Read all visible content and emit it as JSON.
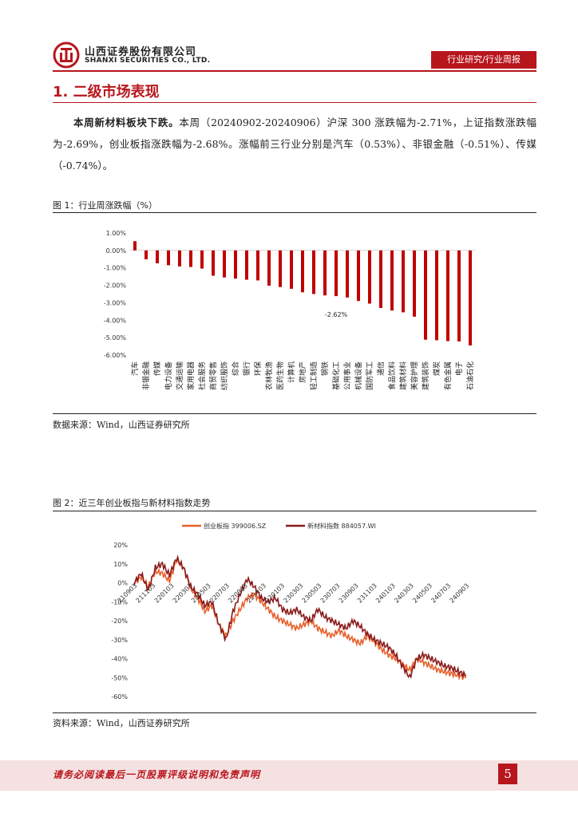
{
  "header": {
    "company_cn": "山西证券股份有限公司",
    "company_en": "SHANXI SECURITIES CO., LTD.",
    "report_type": "行业研究/行业周报"
  },
  "section": {
    "title": "1. 二级市场表现"
  },
  "paragraph": {
    "lead": "本周新材料板块下跌。",
    "body": "本周（20240902-20240906）沪深 300 涨跌幅为-2.71%，上证指数涨跌幅为-2.69%，创业板指涨跌幅为-2.68%。涨幅前三行业分别是汽车（0.53%）、非银金融（-0.51%）、传媒（-0.74%）。"
  },
  "figure1": {
    "title": "图 1：行业周涨跌幅（%）",
    "source": "数据来源：Wind，山西证券研究所"
  },
  "figure2": {
    "title": "图 2：近三年创业板指与新材料指数走势",
    "source": "资料来源：Wind，山西证券研究所"
  },
  "footer": {
    "disclaimer": "请务必阅读最后一页股票评级说明和免责声明",
    "page": "5"
  },
  "chart_data": [
    {
      "type": "bar",
      "title": "行业周涨跌幅（%）",
      "color": "#c00000",
      "ylim": [
        -6,
        1
      ],
      "yticks": [
        "1.00%",
        "0.00%",
        "-1.00%",
        "-2.00%",
        "-3.00%",
        "-4.00%",
        "-5.00%",
        "-6.00%"
      ],
      "categories": [
        "汽车",
        "非银金融",
        "传媒",
        "电力设备",
        "交通运输",
        "家用电器",
        "社会服务",
        "商贸零售",
        "纺织服饰",
        "综合",
        "银行",
        "环保",
        "农林牧渔",
        "医药生物",
        "计算机",
        "房地产",
        "轻工制造",
        "钢铁",
        "基础化工",
        "公用事业",
        "机械设备",
        "国防军工",
        "通信",
        "食品饮料",
        "建筑材料",
        "美容护理",
        "建筑装饰",
        "煤炭",
        "有色金属",
        "电子",
        "石油石化"
      ],
      "values": [
        0.53,
        -0.51,
        -0.74,
        -0.85,
        -0.92,
        -0.95,
        -1.04,
        -1.45,
        -1.55,
        -1.62,
        -1.68,
        -1.72,
        -2.02,
        -2.1,
        -2.2,
        -2.4,
        -2.5,
        -2.58,
        -2.62,
        -2.7,
        -2.9,
        -3.05,
        -3.3,
        -3.45,
        -3.55,
        -3.8,
        -5.12,
        -5.15,
        -5.2,
        -5.22,
        -5.45
      ],
      "annotation": {
        "index": 18,
        "text": "-2.62%"
      }
    },
    {
      "type": "line",
      "title": "近三年创业板指与新材料指数走势",
      "legend_position": "top",
      "ylim": [
        -60,
        20
      ],
      "yticks": [
        "20%",
        "10%",
        "0%",
        "-10%",
        "-20%",
        "-30%",
        "-40%",
        "-50%",
        "-60%"
      ],
      "xticks": [
        "210903",
        "211103",
        "220103",
        "220303",
        "220503",
        "220703",
        "220903",
        "221103",
        "230103",
        "230303",
        "230503",
        "230703",
        "230903",
        "231103",
        "240103",
        "240303",
        "240503",
        "240703",
        "240903"
      ],
      "series": [
        {
          "name": "创业板指 399006.SZ",
          "color": "#e8602c",
          "values": [
            0,
            3,
            -2,
            6,
            5,
            1,
            12,
            8,
            -3,
            -8,
            -15,
            -12,
            -22,
            -28,
            -20,
            -14,
            -8,
            -6,
            -10,
            -14,
            -18,
            -20,
            -22,
            -24,
            -22,
            -20,
            -24,
            -26,
            -28,
            -25,
            -28,
            -30,
            -32,
            -28,
            -31,
            -35,
            -38,
            -40,
            -43,
            -46,
            -40,
            -42,
            -44,
            -46,
            -47,
            -48,
            -49,
            -50
          ]
        },
        {
          "name": "新材料指数 884057.WI",
          "color": "#8b1a1a",
          "values": [
            0,
            5,
            -4,
            8,
            10,
            4,
            13,
            8,
            -2,
            -6,
            -12,
            -10,
            -22,
            -30,
            -15,
            -6,
            2,
            -2,
            -8,
            -10,
            -8,
            -14,
            -16,
            -14,
            -18,
            -20,
            -14,
            -18,
            -20,
            -22,
            -24,
            -20,
            -23,
            -27,
            -30,
            -32,
            -34,
            -38,
            -44,
            -50,
            -40,
            -38,
            -40,
            -42,
            -44,
            -45,
            -47,
            -49
          ]
        }
      ]
    }
  ]
}
